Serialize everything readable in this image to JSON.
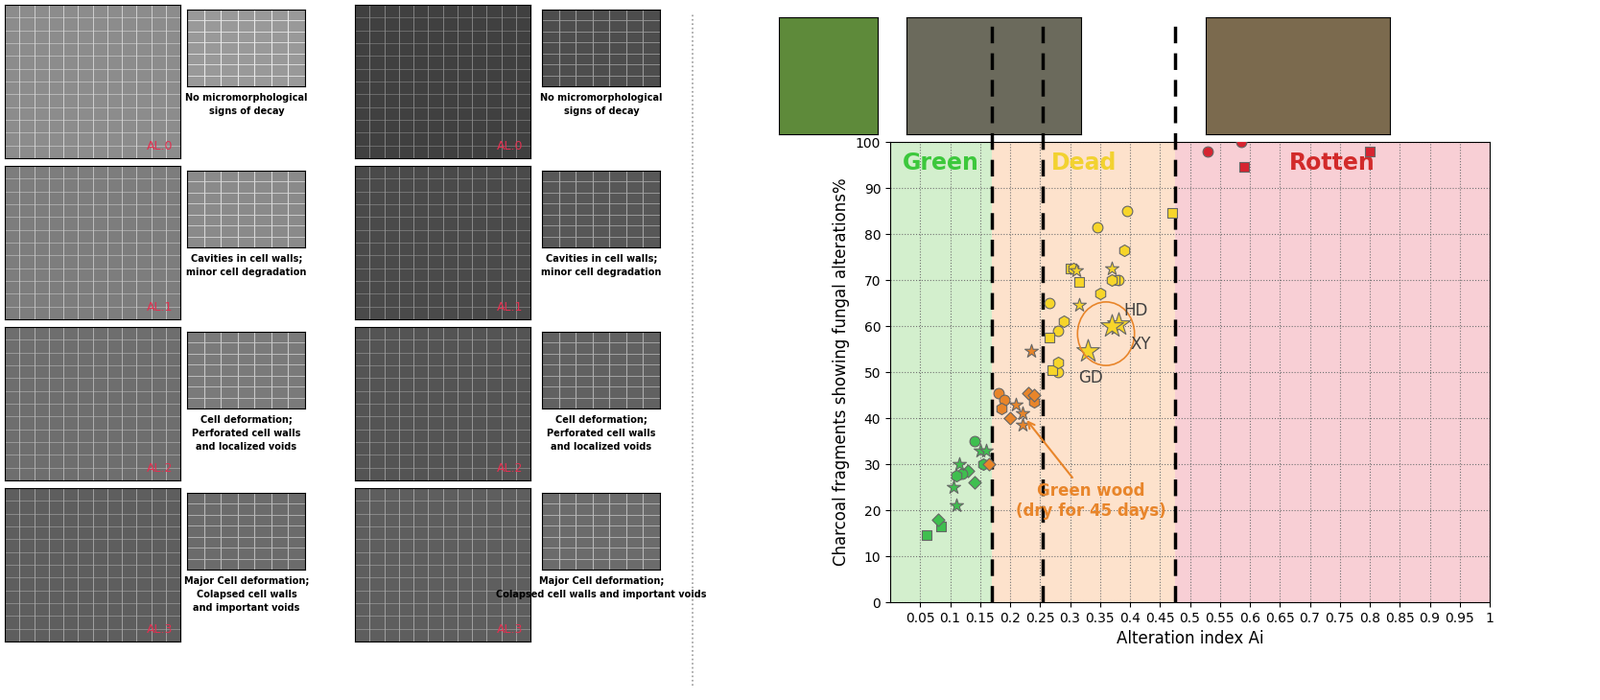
{
  "panels": {
    "columns": [
      {
        "rows": [
          {
            "label": "AL.0",
            "caption": "No micromorphological\nsigns of decay"
          },
          {
            "label": "AL.1",
            "caption": "Cavities in cell walls;\nminor cell degradation"
          },
          {
            "label": "AL.2",
            "caption": "Cell deformation;\nPerforated cell walls\nand localized voids"
          },
          {
            "label": "AL.3",
            "caption": "Major Cell deformation;\nColapsed cell walls\nand important voids"
          }
        ]
      },
      {
        "rows": [
          {
            "label": "AL.0",
            "caption": "No micromorphological\nsigns of decay"
          },
          {
            "label": "AL.1",
            "caption": "Cavities in cell walls;\nminor cell degradation"
          },
          {
            "label": "AL.2",
            "caption": "Cell deformation;\nPerforated cell walls\nand localized voids"
          },
          {
            "label": "AL.3",
            "caption": "Major Cell deformation;\nColapsed cell walls and important voids"
          }
        ]
      }
    ]
  },
  "chart_data": {
    "type": "scatter",
    "x_label": "Alteration index Ai",
    "y_label": "Charcoal fragments showing fungal alterations%",
    "xlim": [
      0,
      1
    ],
    "ylim": [
      0,
      100
    ],
    "xticks": [
      0.05,
      0.1,
      0.15,
      0.2,
      0.25,
      0.3,
      0.35,
      0.4,
      0.45,
      0.5,
      0.55,
      0.6,
      0.65,
      0.7,
      0.75,
      0.8,
      0.85,
      0.9,
      0.95,
      1
    ],
    "yticks": [
      0,
      10,
      20,
      30,
      40,
      50,
      60,
      70,
      80,
      90,
      100
    ],
    "grid": true,
    "regions": [
      {
        "label": "Green",
        "from": 0,
        "to": 0.17,
        "color": "#d3efcd",
        "text_color": "#3cc83c"
      },
      {
        "label": "Dead",
        "from": 0.17,
        "to": 0.475,
        "color": "#fde2cc",
        "text_color": "#f2d230"
      },
      {
        "label": "Rotten",
        "from": 0.475,
        "to": 1,
        "color": "#f8cfd5",
        "text_color": "#d22a2a"
      }
    ],
    "dividers": [
      0.17,
      0.255,
      0.475
    ],
    "annotation": "Green wood\n(dry for 45 days)",
    "series": [
      {
        "color": "#3fbf4f",
        "marker": "square",
        "x": [
          0.06,
          0.085
        ],
        "values": [
          14.5,
          16.5
        ]
      },
      {
        "color": "#3fbf4f",
        "marker": "diamond",
        "x": [
          0.08,
          0.13,
          0.14
        ],
        "values": [
          18,
          28.5,
          26
        ]
      },
      {
        "color": "#3fbf4f",
        "marker": "circle",
        "x": [
          0.12,
          0.14
        ],
        "values": [
          28,
          35
        ]
      },
      {
        "color": "#3fbf4f",
        "marker": "hexagon",
        "x": [
          0.11,
          0.155
        ],
        "values": [
          27.5,
          30
        ]
      },
      {
        "color": "#3fbf4f",
        "marker": "star",
        "x": [
          0.11,
          0.105,
          0.115,
          0.15,
          0.16
        ],
        "values": [
          21,
          25,
          30,
          33,
          33
        ]
      },
      {
        "color": "#e8852a",
        "marker": "circle",
        "x": [
          0.18,
          0.19
        ],
        "values": [
          45.5,
          44
        ]
      },
      {
        "color": "#e8852a",
        "marker": "hexagon",
        "x": [
          0.185,
          0.24
        ],
        "values": [
          42,
          43.5
        ]
      },
      {
        "color": "#e8852a",
        "marker": "diamond",
        "x": [
          0.165,
          0.2,
          0.23,
          0.24
        ],
        "values": [
          30,
          40,
          45.5,
          45
        ]
      },
      {
        "color": "#e8852a",
        "marker": "star",
        "x": [
          0.21,
          0.22,
          0.22,
          0.235
        ],
        "values": [
          43,
          38.5,
          41,
          54.5
        ]
      },
      {
        "color": "#f7d52a",
        "marker": "circle",
        "x": [
          0.265,
          0.28,
          0.28,
          0.345,
          0.38,
          0.395
        ],
        "values": [
          65,
          59,
          50,
          81.5,
          70,
          85
        ]
      },
      {
        "color": "#f7d52a",
        "marker": "square",
        "x": [
          0.265,
          0.27,
          0.3,
          0.315,
          0.375,
          0.47
        ],
        "values": [
          57.5,
          50.5,
          72.5,
          69.5,
          70,
          84.5
        ]
      },
      {
        "color": "#f7d52a",
        "marker": "hexagon",
        "x": [
          0.29,
          0.28,
          0.305,
          0.35,
          0.37,
          0.39
        ],
        "values": [
          61,
          52,
          72.5,
          67,
          70,
          76.5
        ]
      },
      {
        "color": "#f7d52a",
        "marker": "star",
        "x": [
          0.31,
          0.315,
          0.37
        ],
        "values": [
          72,
          64.5,
          72.5
        ]
      },
      {
        "color": "#f7d52a",
        "marker": "big_star",
        "x": [
          0.38,
          0.37,
          0.33
        ],
        "values": [
          60.5,
          60,
          54.5
        ],
        "labels": [
          "HD",
          "XY",
          "GD"
        ]
      },
      {
        "color": "#d62430",
        "marker": "circle",
        "x": [
          0.53,
          0.585
        ],
        "values": [
          98,
          100
        ]
      },
      {
        "color": "#d62430",
        "marker": "square",
        "x": [
          0.59,
          0.8
        ],
        "values": [
          94.5,
          98
        ]
      }
    ]
  }
}
